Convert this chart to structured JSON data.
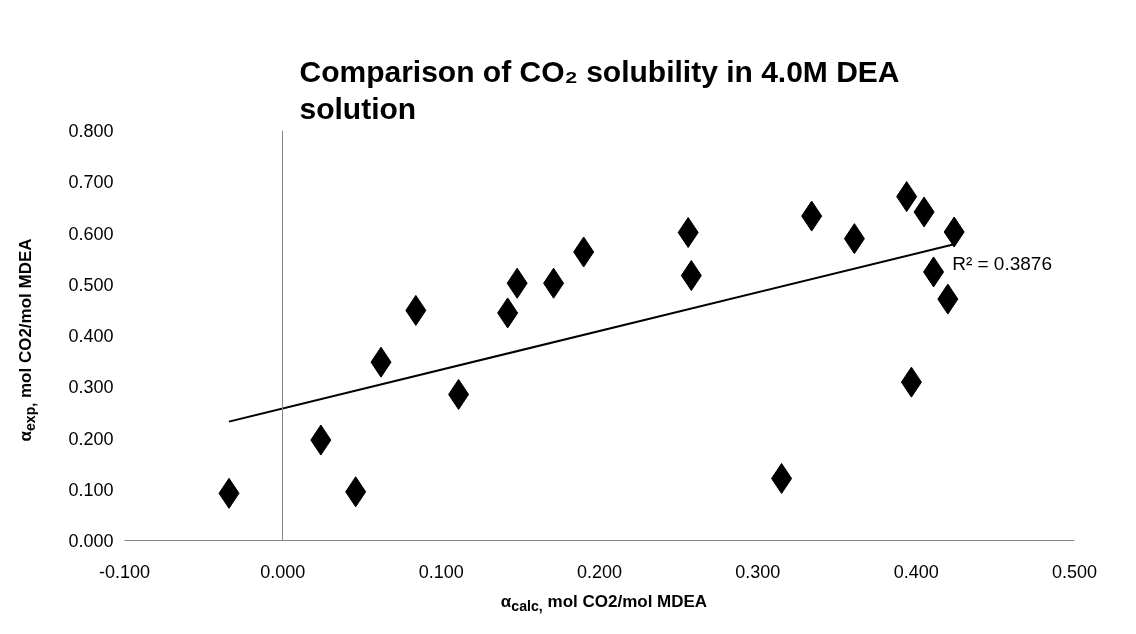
{
  "chart_data": {
    "type": "scatter",
    "title": "Comparison of CO₂ solubility in 4.0M DEA solution",
    "xlabel": "α$_{calc,}$ mol CO2/mol MDEA",
    "ylabel": "α$_{exp,}$ mol CO2/mol MDEA",
    "xlim": [
      -0.1,
      0.5
    ],
    "xticks": [
      {
        "value": -0.1,
        "label": "-0.100"
      },
      {
        "value": 0,
        "label": "0.000"
      },
      {
        "value": 0.1,
        "label": "0.100"
      },
      {
        "value": 0.2,
        "label": "0.200"
      },
      {
        "value": 0.3,
        "label": "0.300"
      },
      {
        "value": 0.4,
        "label": "0.400"
      },
      {
        "value": 0.5,
        "label": "0.500"
      }
    ],
    "ylim": [
      0,
      0.8
    ],
    "yticks": [
      {
        "value": 0,
        "label": "0.000"
      },
      {
        "value": 0.1,
        "label": "0.100"
      },
      {
        "value": 0.2,
        "label": "0.200"
      },
      {
        "value": 0.3,
        "label": "0.300"
      },
      {
        "value": 0.4,
        "label": "0.400"
      },
      {
        "value": 0.5,
        "label": "0.500"
      },
      {
        "value": 0.6,
        "label": "0.600"
      },
      {
        "value": 0.7,
        "label": "0.700"
      },
      {
        "value": 0.8,
        "label": "0.800"
      }
    ],
    "marker": "diamond",
    "series": [
      {
        "color": "#000000",
        "x": [
          -0.034,
          0.024,
          0.046,
          0.062,
          0.084,
          0.111,
          0.142,
          0.148,
          0.171,
          0.19,
          0.256,
          0.258,
          0.315,
          0.334,
          0.361,
          0.394,
          0.405,
          0.424,
          0.411,
          0.42,
          0.397
        ],
        "values": [
          0.092,
          0.196,
          0.095,
          0.348,
          0.449,
          0.285,
          0.444,
          0.502,
          0.502,
          0.563,
          0.601,
          0.517,
          0.121,
          0.633,
          0.589,
          0.671,
          0.641,
          0.602,
          0.524,
          0.471,
          0.309
        ]
      },
      {
        "type": "line",
        "color": "#000000",
        "marker": "none",
        "x": [
          -0.034,
          0.424
        ],
        "values": [
          0.232,
          0.578
        ]
      }
    ],
    "annotations": [
      {
        "text": "R² = 0.3876",
        "x": 0.424,
        "y": 0.578
      }
    ]
  }
}
